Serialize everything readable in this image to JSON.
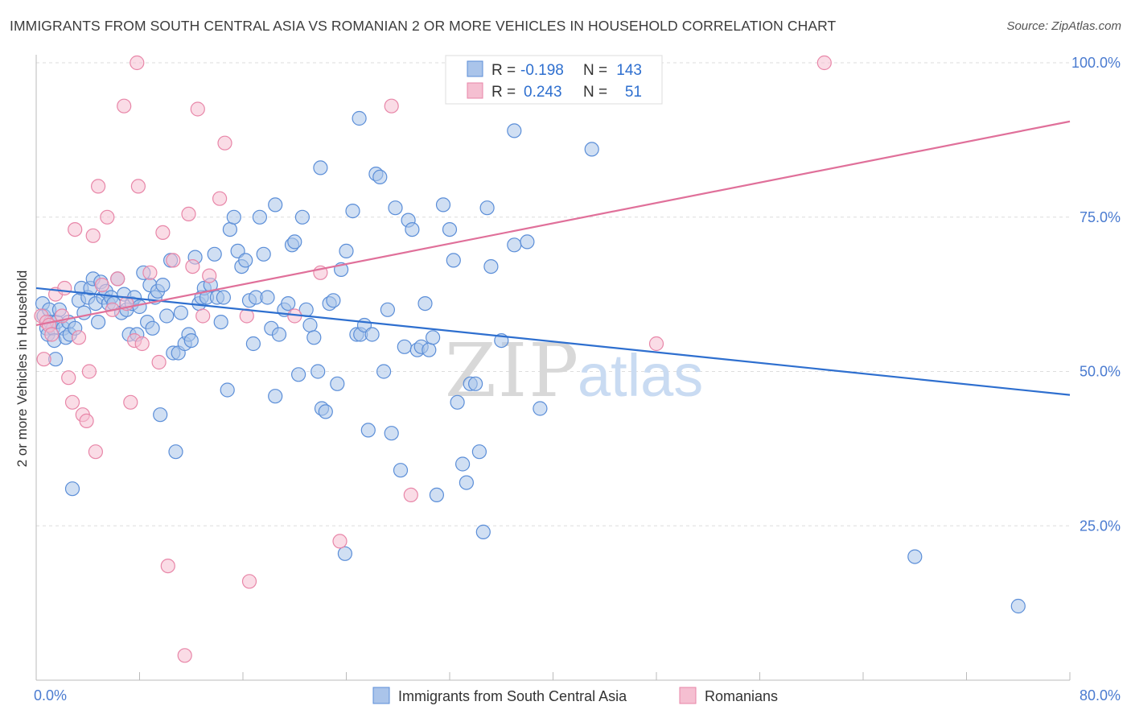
{
  "title": "IMMIGRANTS FROM SOUTH CENTRAL ASIA VS ROMANIAN 2 OR MORE VEHICLES IN HOUSEHOLD CORRELATION CHART",
  "source": "Source: ZipAtlas.com",
  "watermark": {
    "zip": "ZIP",
    "atlas": "atlas"
  },
  "colors": {
    "blue": "#5b8ed8",
    "blue_fill": "#aac4ea",
    "pink": "#e886a8",
    "pink_fill": "#f5bfd1",
    "blue_line": "#2e6fcf",
    "pink_line": "#e0709a",
    "tick_text": "#4a7bd0"
  },
  "legend": {
    "r_label": "R =",
    "n_label": "N =",
    "rows": [
      {
        "r": "-0.198",
        "n": "143"
      },
      {
        "r": "0.243",
        "n": "51"
      }
    ]
  },
  "chart_data": {
    "type": "scatter",
    "xlabel": "",
    "ylabel": "2 or more Vehicles in Household",
    "xlim": [
      0,
      80
    ],
    "ylim": [
      0,
      100
    ],
    "x_tick_labels": [
      "0.0%",
      "80.0%"
    ],
    "y_tick_labels": [
      "25.0%",
      "50.0%",
      "75.0%",
      "100.0%"
    ],
    "y_ticks": [
      25,
      50,
      75,
      100
    ],
    "grid": true,
    "legend_position": "top-center",
    "series": [
      {
        "name": "Immigrants from South Central Asia",
        "color": "#5b8ed8",
        "trend": {
          "x": [
            0,
            80
          ],
          "y": [
            63.5,
            46.2
          ]
        },
        "points": [
          [
            0.5,
            61
          ],
          [
            0.6,
            59
          ],
          [
            0.8,
            57
          ],
          [
            0.9,
            56
          ],
          [
            1,
            60
          ],
          [
            1.1,
            58
          ],
          [
            1.3,
            57
          ],
          [
            1.4,
            55
          ],
          [
            1.5,
            52
          ],
          [
            1.6,
            58
          ],
          [
            1.8,
            60
          ],
          [
            2.1,
            57
          ],
          [
            2.3,
            55.5
          ],
          [
            2.5,
            58
          ],
          [
            2.6,
            56
          ],
          [
            2.8,
            31
          ],
          [
            3.0,
            57
          ],
          [
            3.3,
            61.5
          ],
          [
            3.5,
            63.5
          ],
          [
            3.7,
            59.5
          ],
          [
            4,
            62
          ],
          [
            4.2,
            63.5
          ],
          [
            4.4,
            65
          ],
          [
            4.6,
            61
          ],
          [
            4.8,
            58
          ],
          [
            5,
            64.5
          ],
          [
            5.2,
            62
          ],
          [
            5.4,
            63
          ],
          [
            5.6,
            61
          ],
          [
            5.8,
            62
          ],
          [
            6,
            61
          ],
          [
            6.3,
            65
          ],
          [
            6.6,
            59.5
          ],
          [
            6.8,
            62.5
          ],
          [
            7,
            60
          ],
          [
            7.2,
            56
          ],
          [
            7.4,
            61
          ],
          [
            7.6,
            62
          ],
          [
            7.8,
            56
          ],
          [
            8,
            60.5
          ],
          [
            8.3,
            66
          ],
          [
            8.6,
            58
          ],
          [
            8.8,
            64
          ],
          [
            9,
            57
          ],
          [
            9.2,
            62
          ],
          [
            9.4,
            63
          ],
          [
            9.6,
            43
          ],
          [
            9.8,
            64
          ],
          [
            10.1,
            59
          ],
          [
            10.4,
            68
          ],
          [
            10.6,
            53
          ],
          [
            10.8,
            37
          ],
          [
            11,
            53
          ],
          [
            11.2,
            59.5
          ],
          [
            11.5,
            54.5
          ],
          [
            11.8,
            56
          ],
          [
            12,
            55
          ],
          [
            12.3,
            68.5
          ],
          [
            12.6,
            61
          ],
          [
            12.8,
            62
          ],
          [
            13,
            63.5
          ],
          [
            13.2,
            62
          ],
          [
            13.5,
            64
          ],
          [
            13.8,
            69
          ],
          [
            14,
            62
          ],
          [
            14.3,
            58
          ],
          [
            14.5,
            62
          ],
          [
            14.8,
            47
          ],
          [
            15,
            73
          ],
          [
            15.3,
            75
          ],
          [
            15.6,
            69.5
          ],
          [
            15.9,
            67
          ],
          [
            16.2,
            68
          ],
          [
            16.5,
            61.5
          ],
          [
            16.8,
            54.5
          ],
          [
            17,
            62
          ],
          [
            17.3,
            75
          ],
          [
            17.6,
            69
          ],
          [
            17.9,
            62
          ],
          [
            18.2,
            57
          ],
          [
            18.5,
            46
          ],
          [
            18.8,
            56
          ],
          [
            19.2,
            60
          ],
          [
            19.5,
            61
          ],
          [
            19.8,
            70.5
          ],
          [
            20,
            71
          ],
          [
            20.3,
            49.5
          ],
          [
            20.6,
            75
          ],
          [
            20.9,
            60
          ],
          [
            21.2,
            57.5
          ],
          [
            21.5,
            55.5
          ],
          [
            21.8,
            50
          ],
          [
            22.1,
            44
          ],
          [
            22.4,
            43.5
          ],
          [
            22.7,
            61
          ],
          [
            23,
            61.5
          ],
          [
            23.3,
            48
          ],
          [
            23.6,
            66.5
          ],
          [
            24,
            69.5
          ],
          [
            23.9,
            20.5
          ],
          [
            24.5,
            76
          ],
          [
            24.8,
            56
          ],
          [
            25.1,
            56
          ],
          [
            25.4,
            57.5
          ],
          [
            25.7,
            40.5
          ],
          [
            26,
            56
          ],
          [
            26.3,
            82
          ],
          [
            26.6,
            81.5
          ],
          [
            26.9,
            50
          ],
          [
            27.2,
            60
          ],
          [
            27.5,
            40
          ],
          [
            27.8,
            76.5
          ],
          [
            28.2,
            34
          ],
          [
            28.5,
            54
          ],
          [
            28.8,
            74.5
          ],
          [
            29.1,
            73
          ],
          [
            29.5,
            53.5
          ],
          [
            29.8,
            54
          ],
          [
            30.1,
            61
          ],
          [
            30.4,
            53.5
          ],
          [
            30.7,
            55.5
          ],
          [
            31,
            30
          ],
          [
            31.5,
            77
          ],
          [
            32,
            73
          ],
          [
            32.3,
            68
          ],
          [
            32.6,
            45
          ],
          [
            33,
            35
          ],
          [
            33.3,
            32
          ],
          [
            33.6,
            48
          ],
          [
            34,
            48
          ],
          [
            34.3,
            37
          ],
          [
            34.6,
            24
          ],
          [
            34.9,
            76.5
          ],
          [
            35.2,
            67
          ],
          [
            36,
            55
          ],
          [
            37,
            70.5
          ],
          [
            38,
            71
          ],
          [
            39,
            44
          ],
          [
            43,
            86
          ],
          [
            37,
            89
          ],
          [
            68,
            20
          ],
          [
            76,
            12
          ],
          [
            25,
            91
          ],
          [
            22,
            83
          ],
          [
            18.5,
            77
          ]
        ]
      },
      {
        "name": "Romanians",
        "color": "#e886a8",
        "trend": {
          "x": [
            0,
            80
          ],
          "y": [
            57.5,
            90.5
          ]
        },
        "points": [
          [
            0.4,
            59
          ],
          [
            0.6,
            52
          ],
          [
            0.8,
            58
          ],
          [
            1,
            57.5
          ],
          [
            1.2,
            56
          ],
          [
            1.5,
            62.5
          ],
          [
            2,
            59
          ],
          [
            2.2,
            63.5
          ],
          [
            2.5,
            49
          ],
          [
            2.8,
            45
          ],
          [
            3,
            73
          ],
          [
            3.3,
            55.5
          ],
          [
            3.6,
            43
          ],
          [
            3.9,
            42
          ],
          [
            4.1,
            50
          ],
          [
            4.4,
            72
          ],
          [
            4.6,
            37
          ],
          [
            4.8,
            80
          ],
          [
            5.1,
            64
          ],
          [
            5.5,
            75
          ],
          [
            5.9,
            60
          ],
          [
            6.3,
            65
          ],
          [
            6.8,
            93
          ],
          [
            7,
            61
          ],
          [
            7.3,
            45
          ],
          [
            7.6,
            55
          ],
          [
            7.8,
            100
          ],
          [
            7.9,
            80
          ],
          [
            8.2,
            54.5
          ],
          [
            8.8,
            66
          ],
          [
            9.5,
            51.5
          ],
          [
            9.8,
            72.5
          ],
          [
            10.2,
            18.5
          ],
          [
            10.6,
            68
          ],
          [
            11.5,
            4
          ],
          [
            11.8,
            75.5
          ],
          [
            12.1,
            67
          ],
          [
            12.5,
            92.5
          ],
          [
            12.9,
            59
          ],
          [
            13.4,
            65.5
          ],
          [
            14.2,
            78
          ],
          [
            14.6,
            87
          ],
          [
            16.3,
            59
          ],
          [
            16.5,
            16
          ],
          [
            20,
            59
          ],
          [
            22,
            66
          ],
          [
            23.5,
            22.5
          ],
          [
            27.5,
            93
          ],
          [
            29,
            30
          ],
          [
            48,
            54.5
          ],
          [
            61,
            100
          ]
        ]
      }
    ]
  }
}
